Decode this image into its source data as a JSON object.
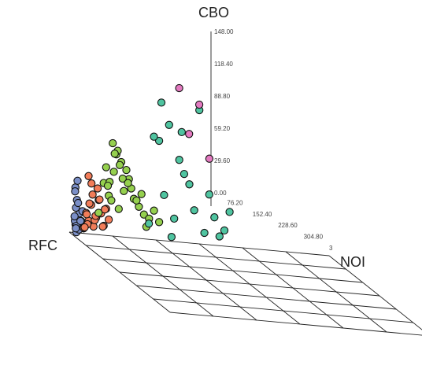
{
  "chart_data": {
    "type": "scatter",
    "title": "",
    "axes": {
      "x": {
        "label": "NOI",
        "ticks": [
          "3",
          "304.80",
          "228.60",
          "152.40",
          "76.20"
        ]
      },
      "y": {
        "label": "RFC",
        "ticks": []
      },
      "z": {
        "label": "CBO",
        "ticks": [
          "148.00",
          "118.40",
          "88.80",
          "59.20",
          "29.60",
          "0.00"
        ],
        "range": [
          0,
          148
        ]
      }
    },
    "grid": true,
    "legend": "none",
    "colors": {
      "blue": "#7b8fc7",
      "orange": "#f27d59",
      "green": "#95d04e",
      "teal": "#4fc4a0",
      "pink": "#e37ac0"
    },
    "series": [
      {
        "color": "blue",
        "points": [
          [
            6,
            30,
            2
          ],
          [
            4,
            50,
            8
          ],
          [
            10,
            70,
            4
          ],
          [
            3,
            20,
            12
          ],
          [
            8,
            85,
            6
          ],
          [
            12,
            40,
            18
          ],
          [
            5,
            60,
            22
          ],
          [
            15,
            95,
            10
          ],
          [
            7,
            15,
            30
          ],
          [
            2,
            75,
            14
          ],
          [
            20,
            55,
            5
          ],
          [
            9,
            100,
            25
          ],
          [
            4,
            35,
            40
          ],
          [
            11,
            80,
            3
          ],
          [
            6,
            10,
            8
          ],
          [
            3,
            90,
            35
          ],
          [
            14,
            25,
            12
          ],
          [
            8,
            65,
            45
          ],
          [
            18,
            45,
            20
          ],
          [
            5,
            5,
            6
          ]
        ]
      },
      {
        "color": "orange",
        "points": [
          [
            20,
            40,
            6
          ],
          [
            30,
            55,
            12
          ],
          [
            25,
            70,
            18
          ],
          [
            40,
            35,
            8
          ],
          [
            35,
            80,
            25
          ],
          [
            28,
            20,
            10
          ],
          [
            45,
            60,
            15
          ],
          [
            50,
            75,
            30
          ],
          [
            22,
            90,
            5
          ],
          [
            38,
            45,
            35
          ],
          [
            55,
            30,
            20
          ],
          [
            42,
            85,
            12
          ],
          [
            32,
            15,
            28
          ],
          [
            60,
            50,
            9
          ],
          [
            48,
            65,
            40
          ],
          [
            26,
            100,
            16
          ],
          [
            65,
            40,
            24
          ],
          [
            36,
            25,
            45
          ],
          [
            58,
            90,
            7
          ],
          [
            44,
            10,
            18
          ],
          [
            70,
            70,
            14
          ],
          [
            30,
            60,
            50
          ],
          [
            52,
            20,
            32
          ],
          [
            62,
            85,
            22
          ]
        ]
      },
      {
        "color": "green",
        "points": [
          [
            50,
            40,
            20
          ],
          [
            70,
            55,
            35
          ],
          [
            60,
            70,
            45
          ],
          [
            90,
            35,
            25
          ],
          [
            80,
            80,
            55
          ],
          [
            65,
            25,
            60
          ],
          [
            100,
            60,
            40
          ],
          [
            110,
            75,
            50
          ],
          [
            75,
            90,
            30
          ],
          [
            95,
            45,
            65
          ],
          [
            120,
            30,
            35
          ],
          [
            85,
            85,
            70
          ],
          [
            72,
            15,
            48
          ],
          [
            130,
            50,
            28
          ],
          [
            105,
            65,
            58
          ],
          [
            68,
            100,
            42
          ],
          [
            140,
            40,
            22
          ],
          [
            88,
            25,
            75
          ],
          [
            125,
            90,
            32
          ],
          [
            98,
            10,
            52
          ],
          [
            150,
            70,
            18
          ],
          [
            78,
            60,
            80
          ],
          [
            115,
            20,
            44
          ],
          [
            135,
            85,
            38
          ],
          [
            160,
            45,
            26
          ],
          [
            92,
            55,
            62
          ],
          [
            145,
            30,
            12
          ],
          [
            170,
            65,
            16
          ],
          [
            82,
            35,
            72
          ],
          [
            108,
            95,
            46
          ]
        ]
      },
      {
        "color": "teal",
        "points": [
          [
            150,
            30,
            15
          ],
          [
            180,
            50,
            40
          ],
          [
            200,
            70,
            20
          ],
          [
            220,
            35,
            60
          ],
          [
            170,
            80,
            85
          ],
          [
            240,
            25,
            30
          ],
          [
            190,
            60,
            100
          ],
          [
            260,
            75,
            10
          ],
          [
            210,
            90,
            70
          ],
          [
            280,
            45,
            25
          ],
          [
            160,
            20,
            90
          ],
          [
            230,
            85,
            50
          ],
          [
            300,
            30,
            15
          ],
          [
            250,
            60,
            115
          ],
          [
            195,
            40,
            5
          ],
          [
            270,
            15,
            45
          ],
          [
            310,
            70,
            30
          ],
          [
            175,
            10,
            120
          ],
          [
            290,
            80,
            8
          ],
          [
            215,
            55,
            95
          ]
        ]
      },
      {
        "color": "pink",
        "points": [
          [
            230,
            20,
            95
          ],
          [
            250,
            50,
            120
          ],
          [
            270,
            35,
            75
          ],
          [
            210,
            70,
            132
          ]
        ]
      }
    ]
  }
}
